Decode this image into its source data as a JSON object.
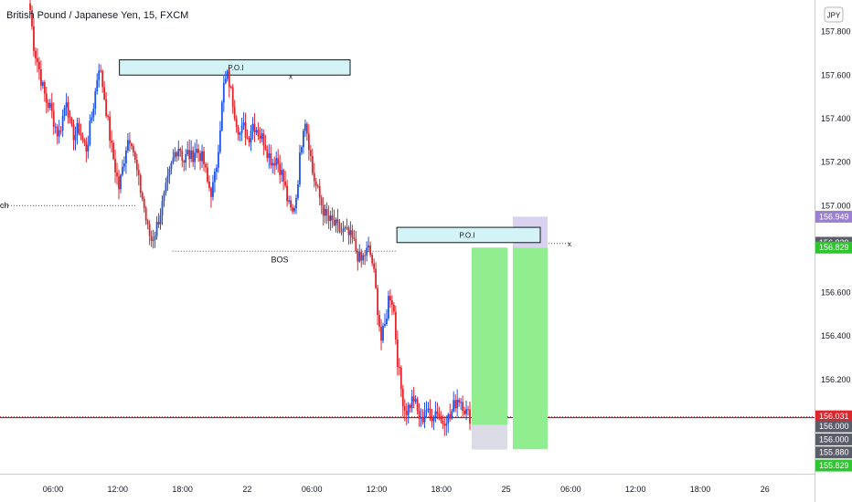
{
  "header": {
    "symbol_title": "British Pound / Japanese Yen, 15, FXCM",
    "currency_badge": "JPY",
    "left_edge_label": "ch"
  },
  "colors": {
    "up_candle": "#1e53e5",
    "down_candle": "#e0242b",
    "poi_fill": "#d4f3f7",
    "target_fill": "#90ee90",
    "stop_fill": "#dcdce6",
    "stop_fill_top": "#d9d2ee",
    "tag_purple": "#9b7fd1",
    "tag_gray": "#595e69",
    "tag_green": "#2ec52e",
    "tag_red": "#e0242b"
  },
  "annotations": {
    "poi_top": "P.O.I",
    "poi_bottom": "P.O.I",
    "bos": "BOS",
    "poi_top_marker": "x",
    "poi_bottom_marker": "x"
  },
  "price_tags": [
    {
      "label": "156.949",
      "value": 156.949,
      "color": "#9b7fd1"
    },
    {
      "label": "156.829",
      "value": 156.829,
      "color": "#595e69"
    },
    {
      "label": "156.829",
      "value": 156.807,
      "color": "#2ec52e"
    },
    {
      "label": "156.031",
      "value": 156.031,
      "color": "#e0242b"
    },
    {
      "label": "156.000",
      "value": 155.985,
      "color": "#595e69"
    },
    {
      "label": "156.000",
      "value": 155.925,
      "color": "#595e69"
    },
    {
      "label": "155.880",
      "value": 155.865,
      "color": "#595e69"
    },
    {
      "label": "155.829",
      "value": 155.805,
      "color": "#2ec52e"
    }
  ],
  "chart_data": {
    "type": "candlestick",
    "title": "British Pound / Japanese Yen, 15, FXCM",
    "ylim": [
      155.78,
      157.92
    ],
    "y_ticks": [
      "157.800",
      "157.600",
      "157.400",
      "157.200",
      "157.000",
      "156.600",
      "156.400",
      "156.200"
    ],
    "y_tick_values": [
      157.8,
      157.6,
      157.4,
      157.2,
      157.0,
      156.6,
      156.4,
      156.2
    ],
    "x_ticks": [
      "06:00",
      "12:00",
      "18:00",
      "22",
      "06:00",
      "12:00",
      "18:00",
      "25",
      "06:00",
      "12:00",
      "18:00",
      "26"
    ],
    "x_tick_bars": [
      12,
      33,
      53,
      71,
      91,
      112,
      132,
      150,
      170,
      190,
      210,
      229
    ],
    "close_path": [
      [
        0,
        157.9
      ],
      [
        1,
        157.72
      ],
      [
        2,
        157.65
      ],
      [
        3,
        157.55
      ],
      [
        4,
        157.48
      ],
      [
        5,
        157.45
      ],
      [
        6,
        157.38
      ],
      [
        7,
        157.32
      ],
      [
        8,
        157.4
      ],
      [
        9,
        157.5
      ],
      [
        10,
        157.35
      ],
      [
        11,
        157.32
      ],
      [
        12,
        157.36
      ],
      [
        13,
        157.3
      ],
      [
        14,
        157.26
      ],
      [
        15,
        157.38
      ],
      [
        16,
        157.5
      ],
      [
        17,
        157.65
      ],
      [
        18,
        157.55
      ],
      [
        19,
        157.42
      ],
      [
        20,
        157.28
      ],
      [
        21,
        157.18
      ],
      [
        22,
        157.08
      ],
      [
        23,
        157.18
      ],
      [
        24,
        157.3
      ],
      [
        25,
        157.32
      ],
      [
        26,
        157.2
      ],
      [
        27,
        157.1
      ],
      [
        28,
        157.02
      ],
      [
        29,
        156.9
      ],
      [
        30,
        156.84
      ],
      [
        31,
        156.88
      ],
      [
        32,
        156.95
      ],
      [
        33,
        157.02
      ],
      [
        34,
        157.1
      ],
      [
        35,
        157.18
      ],
      [
        36,
        157.25
      ],
      [
        37,
        157.28
      ],
      [
        38,
        157.2
      ],
      [
        39,
        157.24
      ],
      [
        40,
        157.22
      ],
      [
        41,
        157.26
      ],
      [
        42,
        157.24
      ],
      [
        43,
        157.2
      ],
      [
        44,
        157.1
      ],
      [
        45,
        157.06
      ],
      [
        46,
        157.15
      ],
      [
        47,
        157.35
      ],
      [
        48,
        157.55
      ],
      [
        49,
        157.6
      ],
      [
        50,
        157.5
      ],
      [
        51,
        157.4
      ],
      [
        52,
        157.33
      ],
      [
        53,
        157.36
      ],
      [
        54,
        157.3
      ],
      [
        55,
        157.38
      ],
      [
        56,
        157.36
      ],
      [
        57,
        157.32
      ],
      [
        58,
        157.3
      ],
      [
        59,
        157.24
      ],
      [
        60,
        157.2
      ],
      [
        61,
        157.22
      ],
      [
        62,
        157.17
      ],
      [
        63,
        157.1
      ],
      [
        64,
        157.0
      ],
      [
        65,
        156.96
      ],
      [
        66,
        157.05
      ],
      [
        67,
        157.25
      ],
      [
        68,
        157.42
      ],
      [
        69,
        157.3
      ],
      [
        70,
        157.15
      ],
      [
        71,
        157.08
      ],
      [
        72,
        157.02
      ],
      [
        73,
        156.96
      ],
      [
        74,
        156.93
      ],
      [
        75,
        156.92
      ],
      [
        76,
        156.9
      ],
      [
        77,
        156.88
      ],
      [
        78,
        156.88
      ],
      [
        79,
        156.86
      ],
      [
        80,
        156.84
      ],
      [
        81,
        156.78
      ],
      [
        82,
        156.74
      ],
      [
        83,
        156.78
      ],
      [
        84,
        156.8
      ],
      [
        85,
        156.72
      ],
      [
        86,
        156.55
      ],
      [
        87,
        156.38
      ],
      [
        88,
        156.45
      ],
      [
        89,
        156.6
      ],
      [
        90,
        156.55
      ],
      [
        91,
        156.3
      ],
      [
        92,
        156.15
      ],
      [
        93,
        156.05
      ],
      [
        94,
        156.08
      ],
      [
        95,
        156.12
      ],
      [
        96,
        156.05
      ],
      [
        97,
        156.0
      ],
      [
        98,
        156.08
      ],
      [
        99,
        156.02
      ],
      [
        100,
        156.05
      ],
      [
        101,
        156.06
      ],
      [
        102,
        156.0
      ],
      [
        103,
        156.03
      ],
      [
        104,
        156.02
      ],
      [
        105,
        156.08
      ],
      [
        106,
        156.12
      ],
      [
        107,
        156.1
      ],
      [
        108,
        156.05
      ],
      [
        109,
        156.03
      ]
    ],
    "levels": {
      "poi_top_low": 157.6,
      "poi_top_high": 157.67,
      "poi_bottom_low": 156.83,
      "poi_bottom_high": 156.9,
      "bos": 156.79,
      "left_line": 157.0,
      "current_price": 156.031,
      "dark_line": 156.0
    },
    "positions": {
      "left_box": {
        "entry": 156.807,
        "target": 156.0,
        "stop": 156.0
      },
      "right_box": {
        "entry": 156.807,
        "target": 155.88,
        "stop": 156.949
      }
    }
  }
}
